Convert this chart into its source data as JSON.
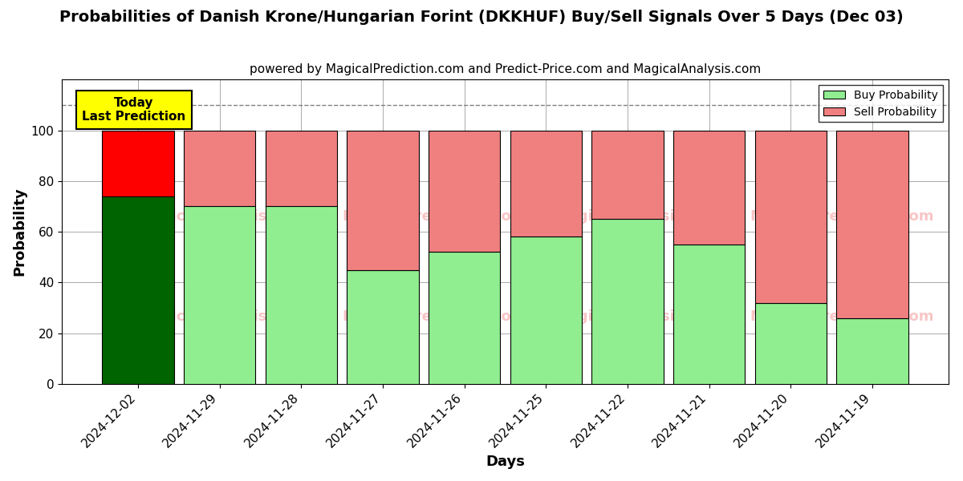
{
  "title": "Probabilities of Danish Krone/Hungarian Forint (DKKHUF) Buy/Sell Signals Over 5 Days (Dec 03)",
  "subtitle": "powered by MagicalPrediction.com and Predict-Price.com and MagicalAnalysis.com",
  "xlabel": "Days",
  "ylabel": "Probability",
  "categories": [
    "2024-12-02",
    "2024-11-29",
    "2024-11-28",
    "2024-11-27",
    "2024-11-26",
    "2024-11-25",
    "2024-11-22",
    "2024-11-21",
    "2024-11-20",
    "2024-11-19"
  ],
  "buy_values": [
    74,
    70,
    70,
    45,
    52,
    58,
    65,
    55,
    32,
    26
  ],
  "sell_values": [
    26,
    30,
    30,
    55,
    48,
    42,
    35,
    45,
    68,
    74
  ],
  "buy_colors": [
    "#006400",
    "#90EE90",
    "#90EE90",
    "#90EE90",
    "#90EE90",
    "#90EE90",
    "#90EE90",
    "#90EE90",
    "#90EE90",
    "#90EE90"
  ],
  "sell_colors": [
    "#FF0000",
    "#F08080",
    "#F08080",
    "#F08080",
    "#F08080",
    "#F08080",
    "#F08080",
    "#F08080",
    "#F08080",
    "#F08080"
  ],
  "legend_buy_color": "#90EE90",
  "legend_sell_color": "#F08080",
  "annotation_text": "Today\nLast Prediction",
  "annotation_bg": "#FFFF00",
  "dashed_line_y": 110,
  "ylim": [
    0,
    120
  ],
  "yticks": [
    0,
    20,
    40,
    60,
    80,
    100
  ],
  "background_color": "#FFFFFF",
  "grid_color": "#AAAAAA",
  "title_fontsize": 14,
  "subtitle_fontsize": 11,
  "label_fontsize": 13,
  "tick_fontsize": 11,
  "bar_width": 0.88
}
